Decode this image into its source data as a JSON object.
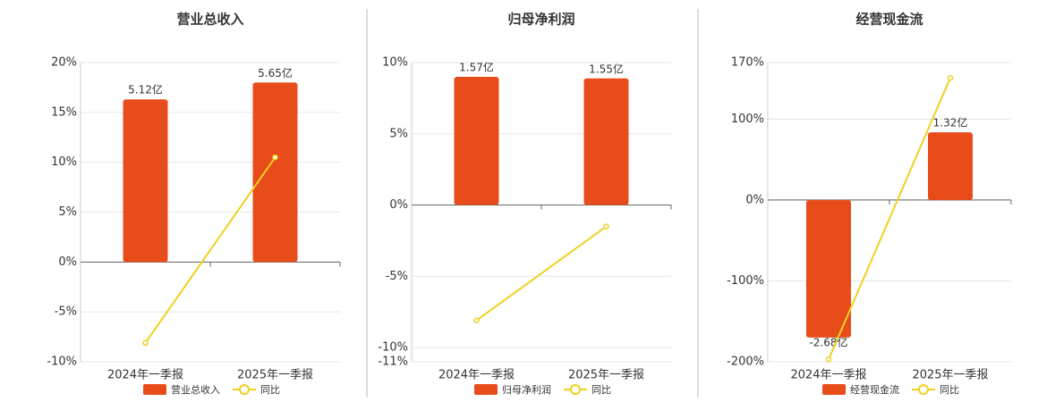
{
  "chart_data": [
    {
      "type": "combo",
      "title": "营业总收入",
      "categories": [
        "2024年一季报",
        "2025年一季报"
      ],
      "series": [
        {
          "name": "营业总收入",
          "type": "bar",
          "color": "#e84c1b",
          "values": [
            5.12,
            5.65
          ],
          "value_labels": [
            "5.12亿",
            "5.65亿"
          ]
        },
        {
          "name": "同比",
          "type": "line",
          "color": "#f0d020",
          "values": [
            -8.1,
            10.5
          ]
        }
      ],
      "ylim": [
        -10,
        20
      ],
      "yticks": [
        {
          "value": -10,
          "label": "-10%"
        },
        {
          "value": -5,
          "label": "-5%"
        },
        {
          "value": 0,
          "label": "0%"
        },
        {
          "value": 5,
          "label": "5%"
        },
        {
          "value": 10,
          "label": "10%"
        },
        {
          "value": 15,
          "label": "15%"
        },
        {
          "value": 20,
          "label": "20%"
        }
      ],
      "grid": true
    },
    {
      "type": "combo",
      "title": "归母净利润",
      "categories": [
        "2024年一季报",
        "2025年一季报"
      ],
      "series": [
        {
          "name": "归母净利润",
          "type": "bar",
          "color": "#e84c1b",
          "values": [
            1.57,
            1.55
          ],
          "value_labels": [
            "1.57亿",
            "1.55亿"
          ]
        },
        {
          "name": "同比",
          "type": "line",
          "color": "#f0d020",
          "values": [
            -8.1,
            -1.5
          ]
        }
      ],
      "ylim": [
        -11,
        10
      ],
      "yticks": [
        {
          "value": -11,
          "label": "-11%"
        },
        {
          "value": -10,
          "label": "-10%"
        },
        {
          "value": -5,
          "label": "-5%"
        },
        {
          "value": 0,
          "label": "0%"
        },
        {
          "value": 5,
          "label": "5%"
        },
        {
          "value": 10,
          "label": "10%"
        }
      ],
      "grid": true
    },
    {
      "type": "combo",
      "title": "经营现金流",
      "categories": [
        "2024年一季报",
        "2025年一季报"
      ],
      "series": [
        {
          "name": "经营现金流",
          "type": "bar",
          "color": "#e84c1b",
          "values": [
            -2.68,
            1.32
          ],
          "value_labels": [
            "-2.68亿",
            "1.32亿"
          ]
        },
        {
          "name": "同比",
          "type": "line",
          "color": "#f0d020",
          "values": [
            -197,
            151
          ]
        }
      ],
      "ylim": [
        -200,
        170
      ],
      "yticks": [
        {
          "value": -200,
          "label": "-200%"
        },
        {
          "value": -100,
          "label": "-100%"
        },
        {
          "value": 0,
          "label": "0%"
        },
        {
          "value": 100,
          "label": "100%"
        },
        {
          "value": 170,
          "label": "170%"
        }
      ],
      "grid": true
    }
  ]
}
